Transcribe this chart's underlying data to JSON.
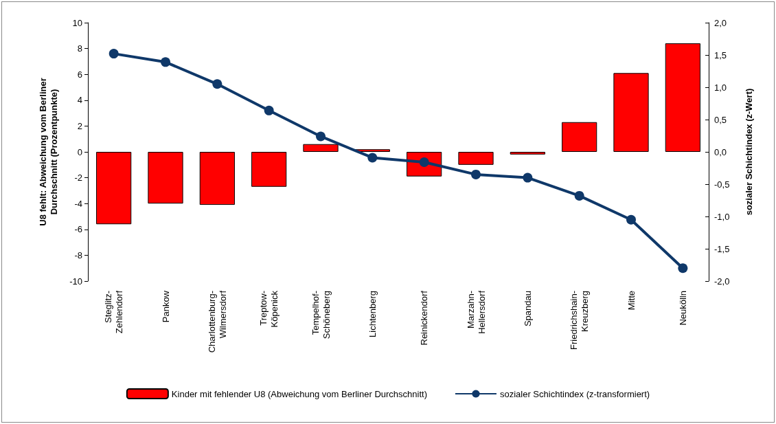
{
  "chart_data": {
    "type": "bar",
    "xlabel": null,
    "ylabel": "U8 fehlt: Abweichung vom Berliner Durchschnitt (Prozentpunkte)",
    "y2label": "sozialer Schichtindex (z-Wert)",
    "categories": [
      "Steglitz-Zehlendorf",
      "Pankow",
      "Charlottenburg-Wilmersdorf",
      "Treptow-Köpenick",
      "Tempelhof-Schöneberg",
      "Lichtenberg",
      "Reinickendorf",
      "Marzahn-Hellersdorf",
      "Spandau",
      "Friedrichshain-Kreuzberg",
      "Mitte",
      "Neukölln"
    ],
    "series": [
      {
        "name": "Kinder mit fehlender U8 (Abweichung vom Berliner Durchschnitt)",
        "color": "#ff0000",
        "values": [
          -5.6,
          -4.0,
          -4.1,
          -2.7,
          0.6,
          0.2,
          -1.9,
          -1.0,
          -0.2,
          2.3,
          6.1,
          8.4
        ]
      },
      {
        "name": "sozialer Schichtindex (z-transformiert)",
        "type": "line",
        "axis": "y2",
        "color": "#0f3869",
        "marker": "circle",
        "values": [
          1.52,
          1.39,
          1.05,
          0.64,
          0.24,
          -0.09,
          -0.16,
          -0.35,
          -0.4,
          -0.68,
          -1.05,
          -1.8
        ]
      }
    ],
    "ylim": [
      -10,
      10
    ],
    "yticks": [
      -10,
      -8,
      -6,
      -4,
      -2,
      0,
      2,
      4,
      6,
      8,
      10
    ],
    "y2lim": [
      -2,
      2
    ],
    "y2ticks": [
      {
        "value": -2,
        "label": "-2,0"
      },
      {
        "value": -1.5,
        "label": "-1,5"
      },
      {
        "value": -1,
        "label": "-1,0"
      },
      {
        "value": -0.5,
        "label": "-0,5"
      },
      {
        "value": 0,
        "label": "0,0"
      },
      {
        "value": 0.5,
        "label": "0,5"
      },
      {
        "value": 1,
        "label": "1,0"
      },
      {
        "value": 1.5,
        "label": "1,5"
      },
      {
        "value": 2,
        "label": "2,0"
      }
    ],
    "grid": false,
    "legend": "bottom"
  }
}
